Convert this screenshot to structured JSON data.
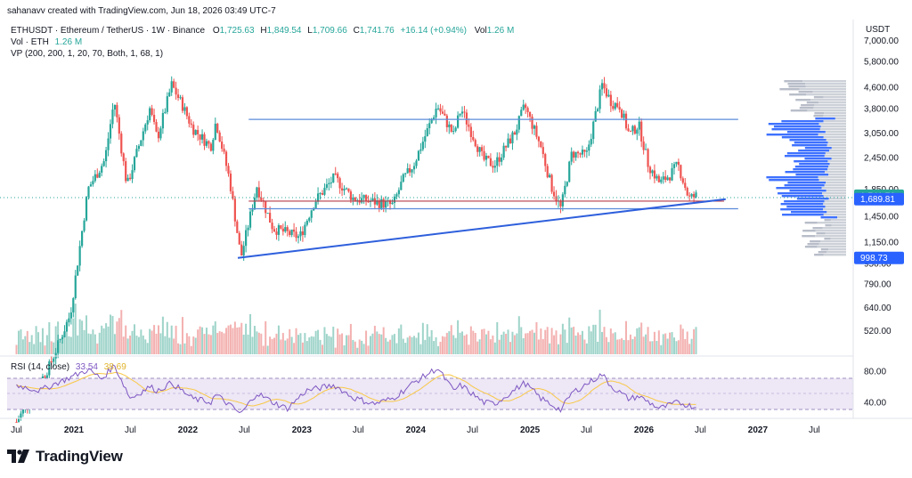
{
  "header": {
    "created_by": "sahanavv created with TradingView.com, Jun 18, 2026 03:49 UTC-7",
    "symbol_desc": "ETHUSDT · Ethereum / TetherUS · 1W · Binance",
    "ohlc": {
      "o_label": "O",
      "o": "1,725.63",
      "h_label": "H",
      "h": "1,849.54",
      "l_label": "L",
      "l": "1,709.66",
      "c_label": "C",
      "c": "1,741.76",
      "change": "+16.14 (+0.94%)",
      "vol_label": "Vol",
      "vol": "1.26 M"
    },
    "vol_line": {
      "label": "Vol · ETH",
      "value": "1.26 M"
    },
    "vp_line": "VP (200, 200, 1, 20, 70, Both, 1, 68, 1)"
  },
  "rsi": {
    "label": "RSI (14, close)",
    "value": "33.54",
    "ma": "38.69"
  },
  "footer": {
    "brand": "TradingView"
  },
  "chart_data": {
    "type": "candlestick",
    "symbol": "ETHUSDT",
    "interval": "1W",
    "price_axis": {
      "currency": "USDT",
      "ticks": [
        {
          "label": "7,000.00",
          "value": 7000
        },
        {
          "label": "5,800.00",
          "value": 5800
        },
        {
          "label": "4,600.00",
          "value": 4600
        },
        {
          "label": "3,800.00",
          "value": 3800
        },
        {
          "label": "3,050.00",
          "value": 3050
        },
        {
          "label": "2,450.00",
          "value": 2450
        },
        {
          "label": "1,850.00",
          "value": 1850
        },
        {
          "label": "1,450.00",
          "value": 1450
        },
        {
          "label": "1,150.00",
          "value": 1150
        },
        {
          "label": "950.00",
          "value": 950
        },
        {
          "label": "790.00",
          "value": 790
        },
        {
          "label": "640.00",
          "value": 640
        },
        {
          "label": "520.00",
          "value": 520
        }
      ],
      "scale": "log",
      "badges": [
        {
          "label": "1,741.76",
          "value": 1741.76,
          "color": "#26a69a"
        },
        {
          "label": "1,689.81",
          "value": 1689.81,
          "color": "#2962ff"
        },
        {
          "label": "998.73",
          "value": 998.73,
          "color": "#2962ff"
        }
      ]
    },
    "rsi_axis": {
      "ticks": [
        {
          "label": "80.00",
          "value": 80
        },
        {
          "label": "40.00",
          "value": 40
        }
      ],
      "bands": [
        70,
        50,
        30
      ]
    },
    "time_axis": [
      {
        "label": "Jul",
        "date": "2020-07-01",
        "bold": false
      },
      {
        "label": "2021",
        "date": "2021-01-01",
        "bold": true
      },
      {
        "label": "Jul",
        "date": "2021-07-01",
        "bold": false
      },
      {
        "label": "2022",
        "date": "2022-01-01",
        "bold": true
      },
      {
        "label": "Jul",
        "date": "2022-07-01",
        "bold": false
      },
      {
        "label": "2023",
        "date": "2023-01-01",
        "bold": true
      },
      {
        "label": "Jul",
        "date": "2023-07-01",
        "bold": false
      },
      {
        "label": "2024",
        "date": "2024-01-01",
        "bold": true
      },
      {
        "label": "Jul",
        "date": "2024-07-01",
        "bold": false
      },
      {
        "label": "2025",
        "date": "2025-01-01",
        "bold": true
      },
      {
        "label": "Jul",
        "date": "2025-07-01",
        "bold": false
      },
      {
        "label": "2026",
        "date": "2026-01-01",
        "bold": true
      },
      {
        "label": "Jul",
        "date": "2026-07-01",
        "bold": false
      },
      {
        "label": "2027",
        "date": "2027-01-01",
        "bold": true
      },
      {
        "label": "Jul",
        "date": "2027-07-01",
        "bold": false
      }
    ],
    "price_path": [
      [
        "2020-07-01",
        230
      ],
      [
        "2020-10-15",
        380
      ],
      [
        "2020-12-20",
        600
      ],
      [
        "2021-02-15",
        1850
      ],
      [
        "2021-04-10",
        2400
      ],
      [
        "2021-05-10",
        4100
      ],
      [
        "2021-06-20",
        1900
      ],
      [
        "2021-09-01",
        3800
      ],
      [
        "2021-09-25",
        2900
      ],
      [
        "2021-11-10",
        4700
      ],
      [
        "2021-12-15",
        3900
      ],
      [
        "2022-01-15",
        3200
      ],
      [
        "2022-03-15",
        2700
      ],
      [
        "2022-04-01",
        3400
      ],
      [
        "2022-05-15",
        2000
      ],
      [
        "2022-06-20",
        1000
      ],
      [
        "2022-08-10",
        1900
      ],
      [
        "2022-10-01",
        1300
      ],
      [
        "2022-11-15",
        1250
      ],
      [
        "2022-12-25",
        1200
      ],
      [
        "2023-02-10",
        1650
      ],
      [
        "2023-04-15",
        2050
      ],
      [
        "2023-06-15",
        1700
      ],
      [
        "2023-08-20",
        1650
      ],
      [
        "2023-10-20",
        1600
      ],
      [
        "2023-11-20",
        2000
      ],
      [
        "2023-12-25",
        2300
      ],
      [
        "2024-03-10",
        3900
      ],
      [
        "2024-05-01",
        3000
      ],
      [
        "2024-05-25",
        3800
      ],
      [
        "2024-08-05",
        2400
      ],
      [
        "2024-09-10",
        2300
      ],
      [
        "2024-11-15",
        3100
      ],
      [
        "2024-12-15",
        3900
      ],
      [
        "2025-02-05",
        2700
      ],
      [
        "2025-03-10",
        1900
      ],
      [
        "2025-04-10",
        1550
      ],
      [
        "2025-05-15",
        2550
      ],
      [
        "2025-07-01",
        2500
      ],
      [
        "2025-08-20",
        4700
      ],
      [
        "2025-09-20",
        4000
      ],
      [
        "2025-10-15",
        3900
      ],
      [
        "2025-11-15",
        3000
      ],
      [
        "2025-12-15",
        3300
      ],
      [
        "2026-01-15",
        2300
      ],
      [
        "2026-02-20",
        1950
      ],
      [
        "2026-03-25",
        2100
      ],
      [
        "2026-04-20",
        2300
      ],
      [
        "2026-05-25",
        1700
      ],
      [
        "2026-06-18",
        1742
      ]
    ],
    "rsi_path": [
      [
        "2020-07-01",
        62
      ],
      [
        "2020-09-15",
        55
      ],
      [
        "2020-11-01",
        64
      ],
      [
        "2020-12-20",
        72
      ],
      [
        "2021-02-15",
        82
      ],
      [
        "2021-04-01",
        70
      ],
      [
        "2021-05-10",
        88
      ],
      [
        "2021-07-01",
        45
      ],
      [
        "2021-09-01",
        60
      ],
      [
        "2021-09-25",
        55
      ],
      [
        "2021-11-10",
        65
      ],
      [
        "2022-01-15",
        45
      ],
      [
        "2022-03-15",
        40
      ],
      [
        "2022-04-01",
        50
      ],
      [
        "2022-06-20",
        25
      ],
      [
        "2022-08-10",
        52
      ],
      [
        "2022-10-01",
        40
      ],
      [
        "2022-11-15",
        32
      ],
      [
        "2023-01-15",
        55
      ],
      [
        "2023-04-15",
        62
      ],
      [
        "2023-06-15",
        46
      ],
      [
        "2023-08-20",
        38
      ],
      [
        "2023-10-20",
        45
      ],
      [
        "2023-12-25",
        65
      ],
      [
        "2024-03-10",
        84
      ],
      [
        "2024-05-01",
        55
      ],
      [
        "2024-05-25",
        62
      ],
      [
        "2024-08-05",
        40
      ],
      [
        "2024-09-10",
        38
      ],
      [
        "2024-12-15",
        65
      ],
      [
        "2025-02-05",
        45
      ],
      [
        "2025-04-10",
        30
      ],
      [
        "2025-05-15",
        52
      ],
      [
        "2025-08-20",
        76
      ],
      [
        "2025-09-20",
        60
      ],
      [
        "2025-11-15",
        44
      ],
      [
        "2025-12-15",
        48
      ],
      [
        "2026-02-20",
        32
      ],
      [
        "2026-04-20",
        40
      ],
      [
        "2026-06-18",
        33.5
      ]
    ],
    "drawings": [
      {
        "type": "horizontal_line",
        "price": 3450,
        "from": "2022-07-15",
        "to": "2026-10-30",
        "color": "#5b8bd9"
      },
      {
        "type": "horizontal_line",
        "price": 1550,
        "from": "2022-07-15",
        "to": "2026-10-30",
        "color": "#5b8bd9"
      },
      {
        "type": "horizontal_line",
        "price": 1660,
        "from": "2022-07-15",
        "to": "2026-09-15",
        "color": "#b63c4b"
      },
      {
        "type": "trend_line",
        "from": [
          "2022-06-10",
          998.73
        ],
        "to": [
          "2026-09-20",
          1689.81
        ],
        "color": "#2e5fdc"
      }
    ],
    "volume_profile_side": "right",
    "grid": false,
    "colors": {
      "up": "#26a69a",
      "down": "#ef5350",
      "vp_up": "#2962ff",
      "vp_down": "#9e9e9e",
      "rsi_line": "#7e57c2",
      "rsi_ma": "#f9c846",
      "rsi_bg": "#ede7f6"
    }
  }
}
